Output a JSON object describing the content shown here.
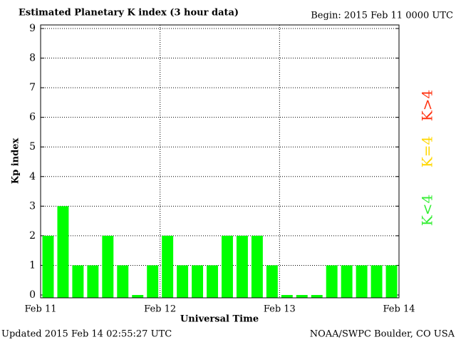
{
  "chart_data": {
    "type": "bar",
    "title": "Estimated Planetary K index (3 hour data)",
    "subtitle": "Begin:  2015 Feb 11 0000 UTC",
    "x_label": "Universal Time",
    "y_label": "Kp index",
    "x": [
      0,
      3,
      6,
      9,
      12,
      15,
      18,
      21,
      24,
      27,
      30,
      33,
      36,
      39,
      42,
      45,
      48,
      51,
      54,
      57,
      60,
      63,
      66,
      69
    ],
    "bin_width": 3,
    "series": [
      {
        "name": "Kp",
        "color": "#00ff00",
        "values": [
          2,
          3,
          1,
          1,
          2,
          1,
          0,
          1,
          2,
          1,
          1,
          1,
          2,
          2,
          2,
          1,
          0,
          0,
          0,
          1,
          1,
          1,
          1,
          1
        ]
      }
    ],
    "xlim": [
      0,
      72
    ],
    "xticks": [
      {
        "value": 0,
        "label": "Feb 11"
      },
      {
        "value": 24,
        "label": "Feb 12"
      },
      {
        "value": 48,
        "label": "Feb 13"
      },
      {
        "value": 72,
        "label": "Feb 14"
      }
    ],
    "ylim": [
      0,
      9
    ],
    "yticks": [
      0,
      1,
      2,
      3,
      4,
      5,
      6,
      7,
      8,
      9
    ],
    "grid": true,
    "legend": [
      {
        "label": "K<4",
        "color": "#33ee33"
      },
      {
        "label": "K=4",
        "color": "#ffd700"
      },
      {
        "label": "K>4",
        "color": "#ff3311"
      }
    ],
    "footer_left": "Updated 2015 Feb 14 02:55:27 UTC",
    "footer_right": "NOAA/SWPC Boulder, CO USA"
  }
}
